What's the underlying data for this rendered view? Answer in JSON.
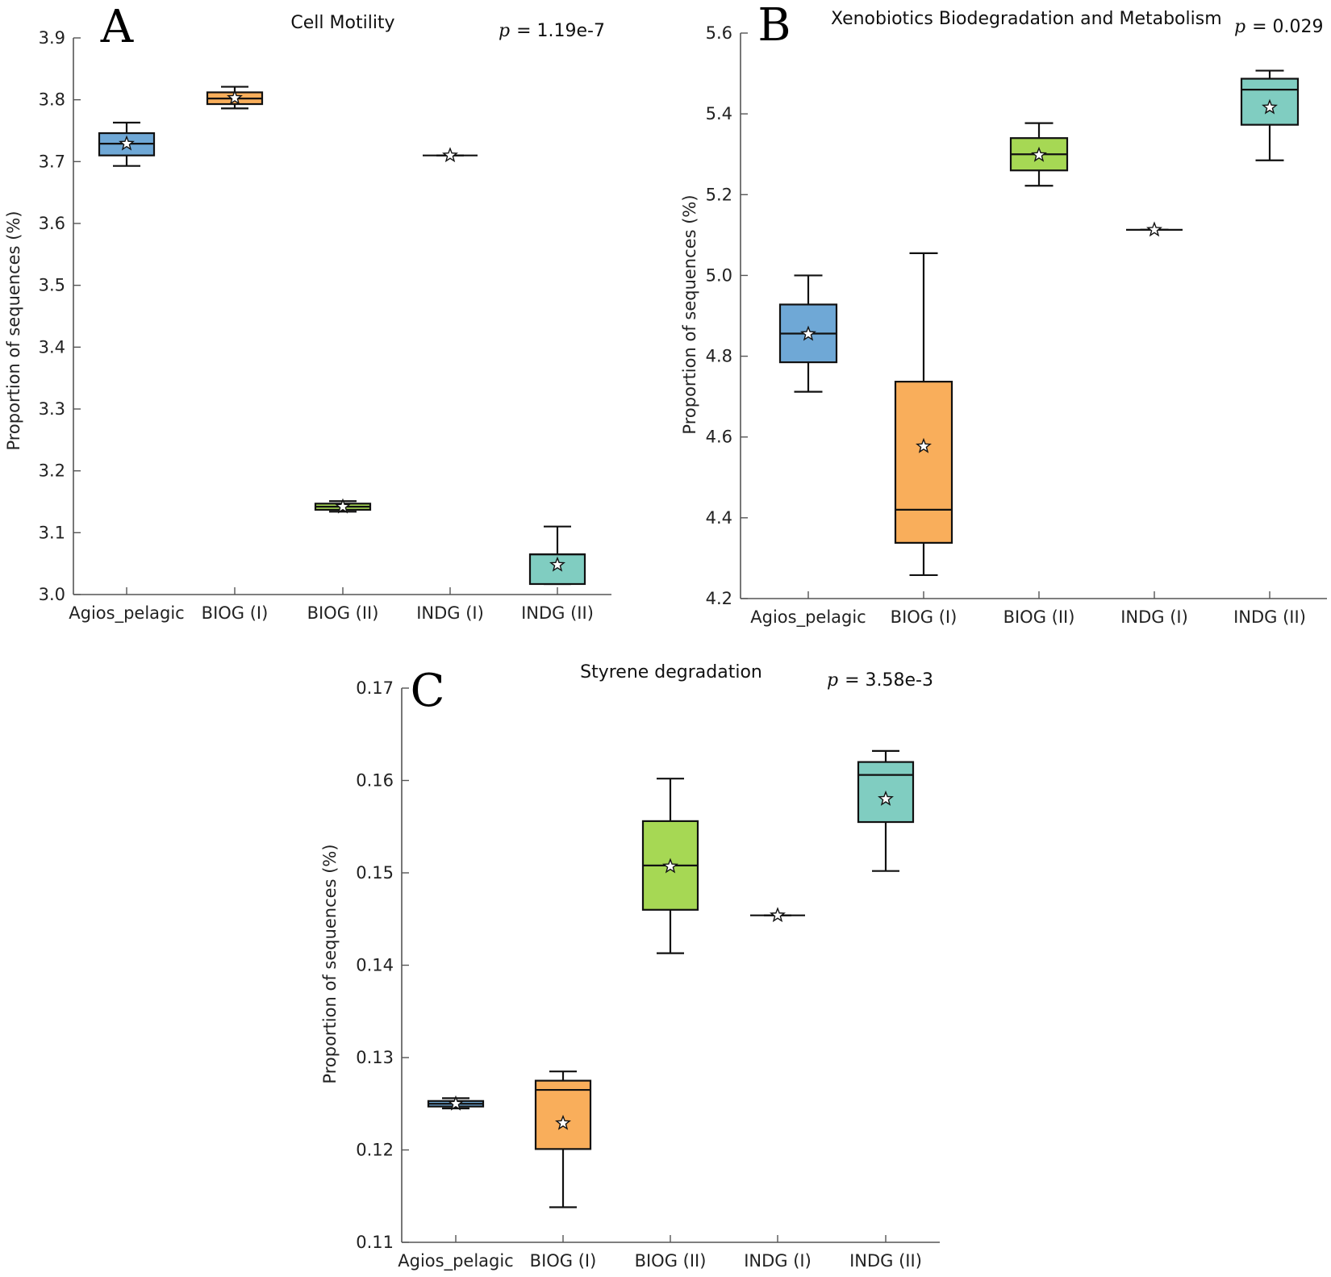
{
  "chart_data": [
    {
      "id": "A",
      "type": "boxplot",
      "panel_letter": "A",
      "title": "Cell Motility",
      "p_prefix": "p",
      "p_value": "= 1.19e-7",
      "ylabel": "Proportion of sequences (%)",
      "ylim": [
        3.0,
        3.9
      ],
      "yticks": [
        "3.0",
        "3.1",
        "3.2",
        "3.3",
        "3.4",
        "3.5",
        "3.6",
        "3.7",
        "3.8",
        "3.9"
      ],
      "categories": [
        "Agios_pelagic",
        "BIOG (I)",
        "BIOG (II)",
        "INDG (I)",
        "INDG (II)"
      ],
      "colors": [
        "#6fa8d6",
        "#f9ae5b",
        "#a6d854",
        "#7fcdbb",
        "#80cdc1"
      ],
      "boxes": [
        {
          "whisker_low": 3.693,
          "q1": 3.71,
          "median": 3.729,
          "q3": 3.746,
          "whisker_high": 3.763,
          "mean": 3.729
        },
        {
          "whisker_low": 3.786,
          "q1": 3.793,
          "median": 3.802,
          "q3": 3.812,
          "whisker_high": 3.821,
          "mean": 3.803
        },
        {
          "whisker_low": 3.134,
          "q1": 3.137,
          "median": 3.142,
          "q3": 3.147,
          "whisker_high": 3.151,
          "mean": 3.142
        },
        {
          "whisker_low": 3.71,
          "q1": 3.71,
          "median": 3.71,
          "q3": 3.71,
          "whisker_high": 3.71,
          "mean": 3.71
        },
        {
          "whisker_low": 3.017,
          "q1": 3.017,
          "median": 3.065,
          "q3": 3.065,
          "whisker_high": 3.11,
          "mean": 3.048
        }
      ]
    },
    {
      "id": "B",
      "type": "boxplot",
      "panel_letter": "B",
      "title": "Xenobiotics Biodegradation and Metabolism",
      "p_prefix": "p",
      "p_value": "= 0.029",
      "ylabel": "Proportion of sequences (%)",
      "ylim": [
        4.2,
        5.6
      ],
      "yticks": [
        "4.2",
        "4.4",
        "4.6",
        "4.8",
        "5.0",
        "5.2",
        "5.4",
        "5.6"
      ],
      "categories": [
        "Agios_pelagic",
        "BIOG (I)",
        "BIOG (II)",
        "INDG (I)",
        "INDG (II)"
      ],
      "colors": [
        "#6fa8d6",
        "#f9ae5b",
        "#a6d854",
        "#7fcdbb",
        "#80cdc1"
      ],
      "boxes": [
        {
          "whisker_low": 4.712,
          "q1": 4.785,
          "median": 4.856,
          "q3": 4.928,
          "whisker_high": 5.0,
          "mean": 4.855
        },
        {
          "whisker_low": 4.258,
          "q1": 4.338,
          "median": 4.42,
          "q3": 4.737,
          "whisker_high": 5.055,
          "mean": 4.577
        },
        {
          "whisker_low": 5.222,
          "q1": 5.26,
          "median": 5.3,
          "q3": 5.34,
          "whisker_high": 5.377,
          "mean": 5.298
        },
        {
          "whisker_low": 5.113,
          "q1": 5.113,
          "median": 5.113,
          "q3": 5.113,
          "whisker_high": 5.113,
          "mean": 5.113
        },
        {
          "whisker_low": 5.285,
          "q1": 5.373,
          "median": 5.46,
          "q3": 5.487,
          "whisker_high": 5.507,
          "mean": 5.416
        }
      ]
    },
    {
      "id": "C",
      "type": "boxplot",
      "panel_letter": "C",
      "title": "Styrene degradation",
      "p_prefix": "p",
      "p_value": "= 3.58e-3",
      "ylabel": "Proportion of sequences (%)",
      "ylim": [
        0.11,
        0.17
      ],
      "yticks": [
        "0.11",
        "0.12",
        "0.13",
        "0.14",
        "0.15",
        "0.16",
        "0.17"
      ],
      "categories": [
        "Agios_pelagic",
        "BIOG (I)",
        "BIOG (II)",
        "INDG (I)",
        "INDG (II)"
      ],
      "colors": [
        "#6fa8d6",
        "#f9ae5b",
        "#a6d854",
        "#7fcdbb",
        "#80cdc1"
      ],
      "boxes": [
        {
          "whisker_low": 0.1245,
          "q1": 0.1247,
          "median": 0.125,
          "q3": 0.1253,
          "whisker_high": 0.1256,
          "mean": 0.125
        },
        {
          "whisker_low": 0.1138,
          "q1": 0.1201,
          "median": 0.1265,
          "q3": 0.1275,
          "whisker_high": 0.1285,
          "mean": 0.1229
        },
        {
          "whisker_low": 0.1413,
          "q1": 0.146,
          "median": 0.1508,
          "q3": 0.1556,
          "whisker_high": 0.1602,
          "mean": 0.1507
        },
        {
          "whisker_low": 0.1454,
          "q1": 0.1454,
          "median": 0.1454,
          "q3": 0.1454,
          "whisker_high": 0.1454,
          "mean": 0.1454
        },
        {
          "whisker_low": 0.1502,
          "q1": 0.1555,
          "median": 0.1606,
          "q3": 0.162,
          "whisker_high": 0.1632,
          "mean": 0.158
        }
      ]
    }
  ]
}
